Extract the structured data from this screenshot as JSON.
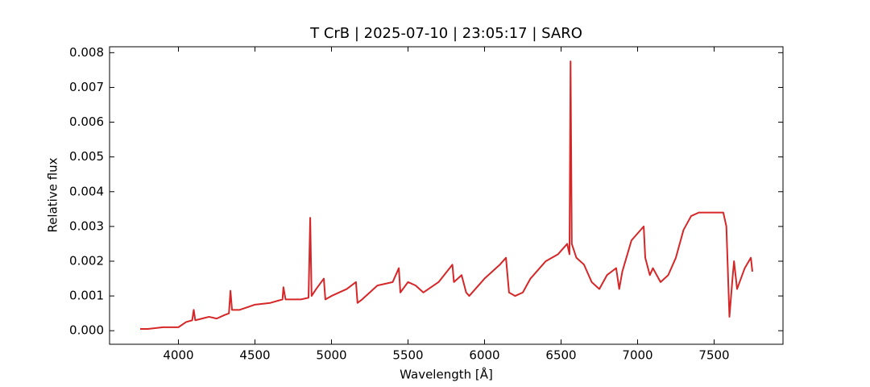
{
  "chart_data": {
    "type": "line",
    "title": "T CrB | 2025-07-10 | 23:05:17 | SARO",
    "xlabel": "Wavelength [Å]",
    "ylabel": "Relative flux",
    "xlim": [
      3550,
      7950
    ],
    "ylim": [
      -0.00039,
      0.00817
    ],
    "xticks": [
      4000,
      4500,
      5000,
      5500,
      6000,
      6500,
      7000,
      7500
    ],
    "yticks": [
      {
        "value": 0,
        "label": "0.000"
      },
      {
        "value": 0.001,
        "label": "0.001"
      },
      {
        "value": 0.002,
        "label": "0.002"
      },
      {
        "value": 0.003,
        "label": "0.003"
      },
      {
        "value": 0.004,
        "label": "0.004"
      },
      {
        "value": 0.005,
        "label": "0.005"
      },
      {
        "value": 0.006,
        "label": "0.006"
      },
      {
        "value": 0.007,
        "label": "0.007"
      },
      {
        "value": 0.008,
        "label": "0.008"
      }
    ],
    "series": [
      {
        "color": "#d62728",
        "x": [
          3750,
          3800,
          3900,
          4000,
          4050,
          4090,
          4100,
          4110,
          4200,
          4250,
          4300,
          4330,
          4340,
          4350,
          4400,
          4500,
          4600,
          4680,
          4686,
          4700,
          4800,
          4850,
          4861,
          4870,
          4900,
          4950,
          4960,
          5000,
          5100,
          5160,
          5170,
          5200,
          5300,
          5400,
          5440,
          5450,
          5500,
          5550,
          5600,
          5700,
          5790,
          5800,
          5850,
          5880,
          5900,
          6000,
          6100,
          6140,
          6160,
          6200,
          6250,
          6300,
          6400,
          6480,
          6500,
          6540,
          6555,
          6562,
          6570,
          6600,
          6650,
          6700,
          6750,
          6800,
          6860,
          6880,
          6900,
          6960,
          7000,
          7040,
          7050,
          7080,
          7100,
          7150,
          7200,
          7250,
          7300,
          7350,
          7400,
          7500,
          7560,
          7580,
          7600,
          7620,
          7630,
          7650,
          7700,
          7740,
          7750
        ],
        "values": [
          5e-05,
          5e-05,
          0.0001,
          0.0001,
          0.00025,
          0.0003,
          0.0006,
          0.0003,
          0.0004,
          0.00035,
          0.00045,
          0.0005,
          0.00115,
          0.0006,
          0.0006,
          0.00075,
          0.0008,
          0.0009,
          0.00125,
          0.0009,
          0.0009,
          0.00095,
          0.00325,
          0.001,
          0.0012,
          0.0015,
          0.0009,
          0.001,
          0.0012,
          0.0014,
          0.0008,
          0.0009,
          0.0013,
          0.0014,
          0.0018,
          0.0011,
          0.0014,
          0.0013,
          0.0011,
          0.0014,
          0.0019,
          0.0014,
          0.0016,
          0.0011,
          0.001,
          0.0015,
          0.0019,
          0.0021,
          0.0011,
          0.001,
          0.0011,
          0.0015,
          0.002,
          0.0022,
          0.0023,
          0.0025,
          0.0022,
          0.00775,
          0.0025,
          0.0021,
          0.0019,
          0.0014,
          0.0012,
          0.0016,
          0.0018,
          0.0012,
          0.0017,
          0.0026,
          0.0028,
          0.003,
          0.0021,
          0.0016,
          0.0018,
          0.0014,
          0.0016,
          0.0021,
          0.0029,
          0.0033,
          0.0034,
          0.0034,
          0.0034,
          0.003,
          0.0004,
          0.0015,
          0.002,
          0.0012,
          0.0018,
          0.0021,
          0.0017
        ]
      }
    ]
  }
}
